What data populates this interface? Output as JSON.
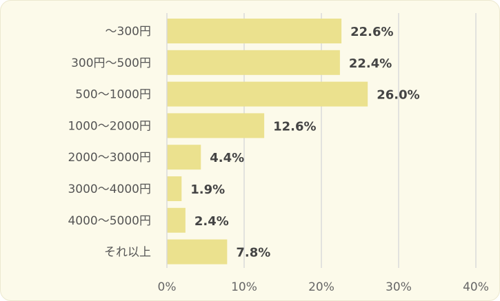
{
  "colors": {
    "bar": "#ebe18e",
    "grid": "#d9d9d9",
    "background": "#fcfaea"
  },
  "chart_data": {
    "type": "bar",
    "orientation": "horizontal",
    "categories": [
      "〜300円",
      "300円〜500円",
      "500〜1000円",
      "1000〜2000円",
      "2000〜3000円",
      "3000〜4000円",
      "4000〜5000円",
      "それ以上"
    ],
    "values": [
      22.6,
      22.4,
      26.0,
      12.6,
      4.4,
      1.9,
      2.4,
      7.8
    ],
    "value_labels": [
      "22.6%",
      "22.4%",
      "26.0%",
      "12.6%",
      "4.4%",
      "1.9%",
      "2.4%",
      "7.8%"
    ],
    "x_ticks": [
      "0%",
      "10%",
      "20%",
      "30%",
      "40%"
    ],
    "xlim": [
      0,
      40
    ],
    "grid": true,
    "title": "",
    "xlabel": "",
    "ylabel": ""
  }
}
